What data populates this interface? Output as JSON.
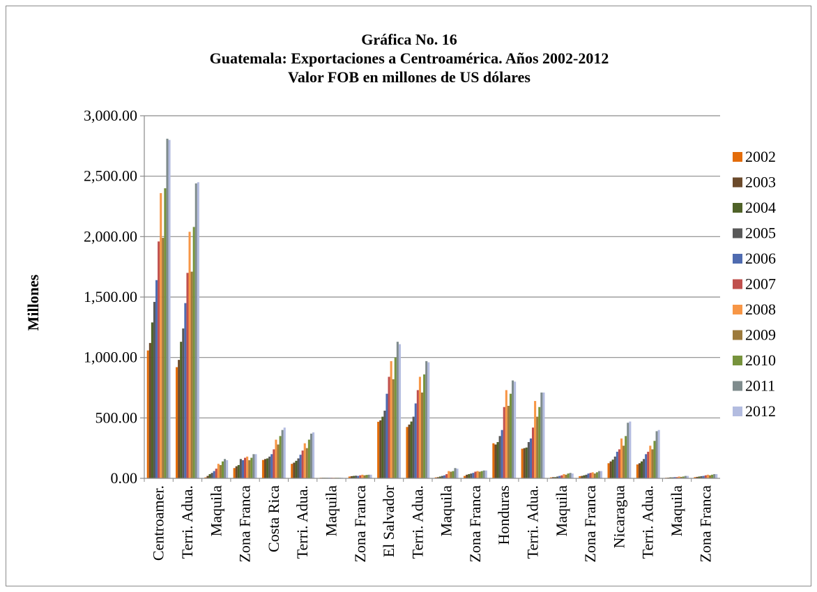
{
  "chart_data": {
    "type": "bar",
    "title_lines": [
      "Gráfica No. 16",
      "Guatemala: Exportaciones a Centroamérica. Años 2002-2012",
      "Valor FOB en millones de US dólares"
    ],
    "xlabel": "",
    "ylabel": "Millones",
    "ylim": [
      0,
      3000
    ],
    "yticks": [
      "0.00",
      "500.00",
      "1,000.00",
      "1,500.00",
      "2,000.00",
      "2,500.00",
      "3,000.00"
    ],
    "grid": true,
    "legend_position": "right",
    "categories": [
      "Centroamer.",
      "Terri. Adua.",
      "Maquila",
      "Zona Franca",
      "Costa Rica",
      "Terri. Adua.",
      "Maquila",
      "Zona Franca",
      "El Salvador",
      "Terri. Adua.",
      "Maquila",
      "Zona Franca",
      "Honduras",
      "Terri. Adua.",
      "Maquila",
      "Zona Franca",
      "Nicaragua",
      "Terri. Adua.",
      "Maquila",
      "Zona Franca"
    ],
    "series": [
      {
        "name": "2002",
        "color": "#E36C0A",
        "values": [
          1058,
          920,
          8,
          85,
          152,
          120,
          5,
          15,
          468,
          425,
          8,
          20,
          290,
          245,
          8,
          18,
          125,
          115,
          5,
          10
        ]
      },
      {
        "name": "2003",
        "color": "#6B4A2B",
        "values": [
          1120,
          980,
          20,
          100,
          160,
          130,
          5,
          18,
          480,
          445,
          10,
          30,
          280,
          250,
          10,
          20,
          140,
          125,
          6,
          12
        ]
      },
      {
        "name": "2004",
        "color": "#4F6228",
        "values": [
          1290,
          1130,
          35,
          110,
          165,
          145,
          5,
          20,
          510,
          470,
          15,
          35,
          300,
          255,
          10,
          25,
          155,
          140,
          8,
          15
        ]
      },
      {
        "name": "2005",
        "color": "#595959",
        "values": [
          1460,
          1240,
          45,
          160,
          180,
          165,
          5,
          22,
          560,
          510,
          20,
          40,
          350,
          300,
          15,
          30,
          180,
          160,
          8,
          18
        ]
      },
      {
        "name": "2006",
        "color": "#4F6BB0",
        "values": [
          1640,
          1450,
          60,
          150,
          200,
          195,
          5,
          20,
          700,
          620,
          25,
          45,
          400,
          330,
          20,
          40,
          220,
          200,
          10,
          20
        ]
      },
      {
        "name": "2007",
        "color": "#C0504D",
        "values": [
          1960,
          1700,
          80,
          170,
          240,
          230,
          5,
          25,
          840,
          730,
          35,
          55,
          590,
          420,
          25,
          45,
          240,
          220,
          10,
          25
        ]
      },
      {
        "name": "2008",
        "color": "#F79646",
        "values": [
          2360,
          2040,
          120,
          180,
          320,
          290,
          5,
          30,
          970,
          840,
          60,
          60,
          730,
          640,
          35,
          50,
          330,
          270,
          15,
          30
        ]
      },
      {
        "name": "2009",
        "color": "#9C7A3C",
        "values": [
          1990,
          1710,
          110,
          150,
          280,
          250,
          5,
          25,
          820,
          710,
          55,
          55,
          600,
          510,
          30,
          40,
          270,
          240,
          12,
          25
        ]
      },
      {
        "name": "2010",
        "color": "#77933C",
        "values": [
          2400,
          2080,
          140,
          170,
          350,
          320,
          5,
          28,
          1000,
          860,
          60,
          60,
          700,
          590,
          40,
          50,
          350,
          310,
          15,
          30
        ]
      },
      {
        "name": "2011",
        "color": "#7F8C8D",
        "values": [
          2810,
          2440,
          160,
          200,
          400,
          370,
          5,
          30,
          1130,
          970,
          85,
          65,
          810,
          710,
          45,
          60,
          460,
          390,
          20,
          35
        ]
      },
      {
        "name": "2012",
        "color": "#B3BCE0",
        "values": [
          2800,
          2450,
          150,
          200,
          420,
          380,
          5,
          30,
          1110,
          960,
          80,
          65,
          800,
          710,
          40,
          60,
          470,
          400,
          20,
          35
        ]
      }
    ]
  }
}
